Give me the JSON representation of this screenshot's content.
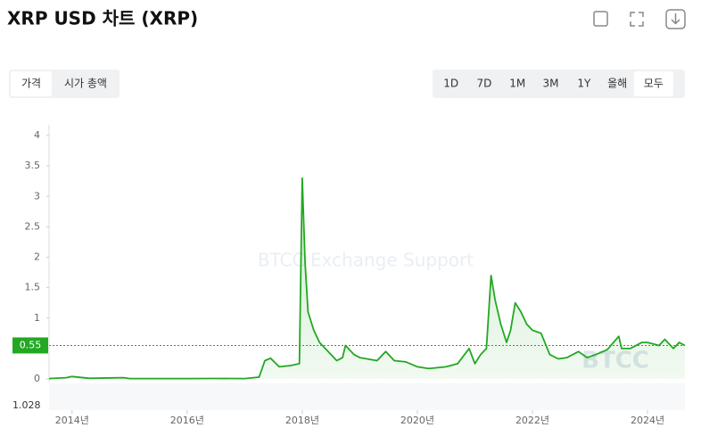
{
  "chart_data": {
    "type": "line",
    "title": "XRP USD 차트 (XRP)",
    "tabs": [
      "가격",
      "시가 총액"
    ],
    "active_tab": 0,
    "ranges": [
      "1D",
      "7D",
      "1M",
      "3M",
      "1Y",
      "올해",
      "모두"
    ],
    "active_range": 6,
    "watermark": "BTCC Exchange Support",
    "logo": "BTCC",
    "volume_label": "1.028",
    "color": "#22a822",
    "last_price": 0.55,
    "x": [
      2013.6,
      2013.9,
      2014.0,
      2014.3,
      2014.9,
      2015.0,
      2015.5,
      2016.0,
      2016.5,
      2017.0,
      2017.25,
      2017.35,
      2017.45,
      2017.6,
      2017.8,
      2017.95,
      2018.0,
      2018.05,
      2018.1,
      2018.2,
      2018.3,
      2018.45,
      2018.6,
      2018.7,
      2018.75,
      2018.9,
      2019.0,
      2019.3,
      2019.45,
      2019.6,
      2019.8,
      2020.0,
      2020.2,
      2020.5,
      2020.7,
      2020.9,
      2021.0,
      2021.1,
      2021.2,
      2021.28,
      2021.35,
      2021.45,
      2021.55,
      2021.62,
      2021.7,
      2021.8,
      2021.9,
      2022.0,
      2022.15,
      2022.3,
      2022.45,
      2022.6,
      2022.8,
      2022.95,
      2023.1,
      2023.3,
      2023.5,
      2023.55,
      2023.7,
      2023.9,
      2024.0,
      2024.2,
      2024.3,
      2024.45,
      2024.55,
      2024.65
    ],
    "values": [
      0.006,
      0.02,
      0.04,
      0.01,
      0.02,
      0.006,
      0.006,
      0.006,
      0.007,
      0.006,
      0.03,
      0.3,
      0.34,
      0.2,
      0.22,
      0.25,
      3.3,
      1.9,
      1.1,
      0.8,
      0.6,
      0.45,
      0.3,
      0.35,
      0.55,
      0.4,
      0.35,
      0.3,
      0.45,
      0.3,
      0.28,
      0.2,
      0.17,
      0.2,
      0.25,
      0.5,
      0.25,
      0.4,
      0.5,
      1.7,
      1.3,
      0.9,
      0.6,
      0.8,
      1.25,
      1.1,
      0.9,
      0.8,
      0.75,
      0.4,
      0.33,
      0.35,
      0.45,
      0.35,
      0.4,
      0.48,
      0.7,
      0.5,
      0.5,
      0.6,
      0.6,
      0.55,
      0.65,
      0.5,
      0.6,
      0.55
    ],
    "xlim": [
      2013.6,
      2024.65
    ],
    "xticks": [
      {
        "value": 2014,
        "label": "2014년"
      },
      {
        "value": 2016,
        "label": "2016년"
      },
      {
        "value": 2018,
        "label": "2018년"
      },
      {
        "value": 2020,
        "label": "2020년"
      },
      {
        "value": 2022,
        "label": "2022년"
      },
      {
        "value": 2024,
        "label": "2024년"
      }
    ],
    "ylim": [
      0,
      4
    ],
    "yticks": [
      0,
      0.5,
      1,
      1.5,
      2,
      2.5,
      3,
      3.5,
      4
    ],
    "grid": false
  }
}
